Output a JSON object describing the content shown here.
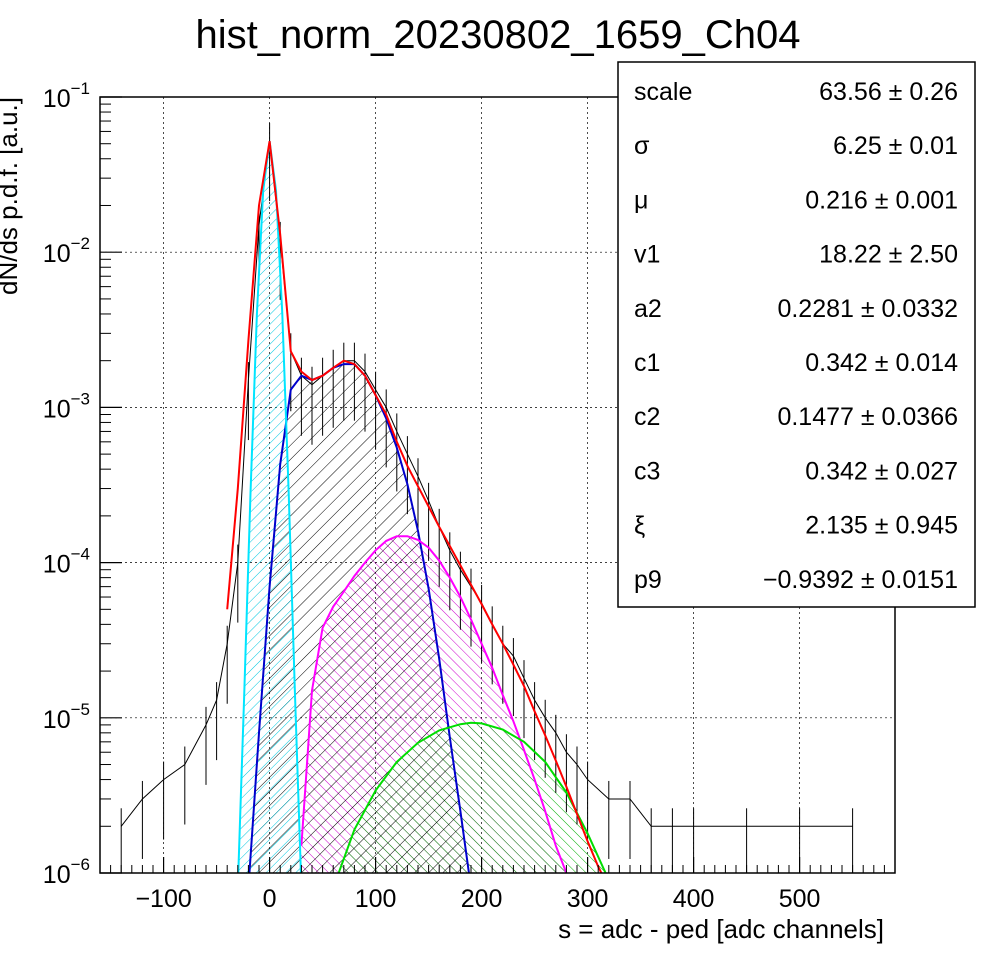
{
  "chart_data": {
    "type": "histogram",
    "title": "hist_norm_20230802_1659_Ch04",
    "xlabel": "s = adc - ped [adc channels]",
    "ylabel": "dN/ds p.d.f. [a.u.]",
    "xlim": [
      -160,
      590
    ],
    "ylim": [
      1e-06,
      0.1
    ],
    "y_scale": "log",
    "grid": true,
    "x_ticks": [
      {
        "value": -100,
        "label": "−100"
      },
      {
        "value": 0,
        "label": "0"
      },
      {
        "value": 100,
        "label": "100"
      },
      {
        "value": 200,
        "label": "200"
      },
      {
        "value": 300,
        "label": "300"
      },
      {
        "value": 400,
        "label": "400"
      },
      {
        "value": 500,
        "label": "500"
      }
    ],
    "y_ticks": [
      {
        "value": 0.1,
        "base": "10",
        "exp": "−1"
      },
      {
        "value": 0.01,
        "base": "10",
        "exp": "−2"
      },
      {
        "value": 0.001,
        "base": "10",
        "exp": "−3"
      },
      {
        "value": 0.0001,
        "base": "10",
        "exp": "−4"
      },
      {
        "value": 1e-05,
        "base": "10",
        "exp": "−5"
      },
      {
        "value": 1e-06,
        "base": "10",
        "exp": "−6"
      }
    ],
    "histogram": {
      "color": "#000000",
      "x": [
        -140,
        -120,
        -100,
        -80,
        -60,
        -50,
        -40,
        -30,
        -20,
        -10,
        0,
        10,
        20,
        30,
        40,
        50,
        60,
        70,
        80,
        90,
        100,
        110,
        120,
        130,
        140,
        150,
        160,
        170,
        180,
        190,
        200,
        210,
        220,
        230,
        240,
        250,
        260,
        270,
        280,
        290,
        300,
        320,
        340,
        360,
        380,
        400,
        450,
        500,
        550
      ],
      "y": [
        2e-06,
        3e-06,
        4e-06,
        5e-06,
        9e-06,
        1.3e-05,
        3e-05,
        0.0001,
        0.0015,
        0.015,
        0.052,
        0.012,
        0.0023,
        0.0016,
        0.0014,
        0.0016,
        0.0018,
        0.002,
        0.002,
        0.0017,
        0.0013,
        0.001,
        0.0007,
        0.0005,
        0.00036,
        0.00025,
        0.00017,
        0.00012,
        9e-05,
        7e-05,
        5.5e-05,
        4e-05,
        3e-05,
        2.5e-05,
        1.8e-05,
        1.3e-05,
        1e-05,
        8e-06,
        6e-06,
        5e-06,
        4e-06,
        3e-06,
        3e-06,
        2e-06,
        2e-06,
        2e-06,
        2e-06,
        2e-06,
        2e-06
      ]
    },
    "series": [
      {
        "color": "#ff0000",
        "hatch": "none",
        "x": [
          -40,
          -30,
          -20,
          -10,
          0,
          10,
          20,
          30,
          40,
          50,
          60,
          70,
          80,
          90,
          100,
          110,
          120,
          130,
          140,
          150,
          160,
          170,
          180,
          190,
          200,
          210,
          220,
          230,
          240,
          250,
          260,
          270,
          280,
          290,
          300,
          310,
          320
        ],
        "y": [
          5e-05,
          0.0003,
          0.0027,
          0.02,
          0.052,
          0.013,
          0.0023,
          0.0017,
          0.0015,
          0.0016,
          0.0018,
          0.002,
          0.0019,
          0.0016,
          0.0012,
          0.0009,
          0.0006,
          0.00042,
          0.00031,
          0.00023,
          0.00017,
          0.000128,
          9.6e-05,
          7.2e-05,
          5.4e-05,
          4e-05,
          3e-05,
          2.2e-05,
          1.6e-05,
          1.1e-05,
          7.7e-06,
          5.3e-06,
          3.6e-06,
          2.4e-06,
          1.6e-06,
          1.1e-06,
          8e-07
        ]
      },
      {
        "color": "#00e5ff",
        "hatch": "cyan",
        "x": [
          -30,
          -24,
          -18,
          -12,
          -6,
          0,
          6,
          12,
          18,
          24,
          30
        ],
        "y": [
          8e-07,
          1.4e-05,
          0.00028,
          0.004,
          0.025,
          0.052,
          0.025,
          0.004,
          0.00028,
          1.4e-05,
          8e-07
        ]
      },
      {
        "color": "#0000cc",
        "hatch": "black",
        "x": [
          -20,
          -10,
          0,
          10,
          20,
          30,
          40,
          50,
          60,
          70,
          80,
          90,
          100,
          110,
          120,
          130,
          140,
          150,
          160,
          170,
          180,
          190
        ],
        "y": [
          8e-07,
          8e-06,
          7e-05,
          0.00043,
          0.0013,
          0.0016,
          0.0015,
          0.0016,
          0.0018,
          0.0019,
          0.0019,
          0.0016,
          0.0012,
          0.00085,
          0.00055,
          0.00032,
          0.00016,
          6.8e-05,
          2.4e-05,
          7.5e-06,
          2.5e-06,
          8e-07
        ]
      },
      {
        "color": "#ff00ff",
        "hatch": "magenta",
        "x": [
          30,
          40,
          50,
          60,
          70,
          80,
          90,
          100,
          110,
          120,
          130,
          140,
          150,
          160,
          170,
          180,
          190,
          200,
          210,
          220,
          230,
          240,
          250,
          260,
          270,
          280
        ],
        "y": [
          1.5e-06,
          1.5e-05,
          3.8e-05,
          5.2e-05,
          6.5e-05,
          8.2e-05,
          0.0001,
          0.00012,
          0.000138,
          0.000148,
          0.000148,
          0.00014,
          0.000125,
          0.000103,
          8e-05,
          6e-05,
          4.3e-05,
          3e-05,
          2.1e-05,
          1.4e-05,
          9.5e-06,
          6.2e-06,
          4e-06,
          2.5e-06,
          1.5e-06,
          1e-06
        ]
      },
      {
        "color": "#00dd00",
        "hatch": "green",
        "x": [
          60,
          80,
          100,
          120,
          140,
          160,
          180,
          190,
          200,
          220,
          240,
          260,
          280,
          300,
          320
        ],
        "y": [
          8e-07,
          1.9e-06,
          3.4e-06,
          5.2e-06,
          6.9e-06,
          8.3e-06,
          9.1e-06,
          9.3e-06,
          9.2e-06,
          8.4e-06,
          7e-06,
          5.2e-06,
          3.3e-06,
          1.8e-06,
          9e-07
        ]
      }
    ],
    "stats_box": {
      "rows": [
        {
          "name": "scale",
          "value": "63.56 ± 0.26"
        },
        {
          "name": "σ",
          "value": "6.25 ± 0.01"
        },
        {
          "name": "μ",
          "value": "0.216 ± 0.001"
        },
        {
          "name": "v1",
          "value": "18.22 ± 2.50"
        },
        {
          "name": "a2",
          "value": "0.2281 ± 0.0332"
        },
        {
          "name": "c1",
          "value": "0.342 ± 0.014"
        },
        {
          "name": "c2",
          "value": "0.1477 ± 0.0366"
        },
        {
          "name": "c3",
          "value": "0.342 ± 0.027"
        },
        {
          "name": "ξ",
          "value": "2.135 ± 0.945"
        },
        {
          "name": "p9",
          "value": "−0.9392 ± 0.0151"
        }
      ]
    }
  }
}
